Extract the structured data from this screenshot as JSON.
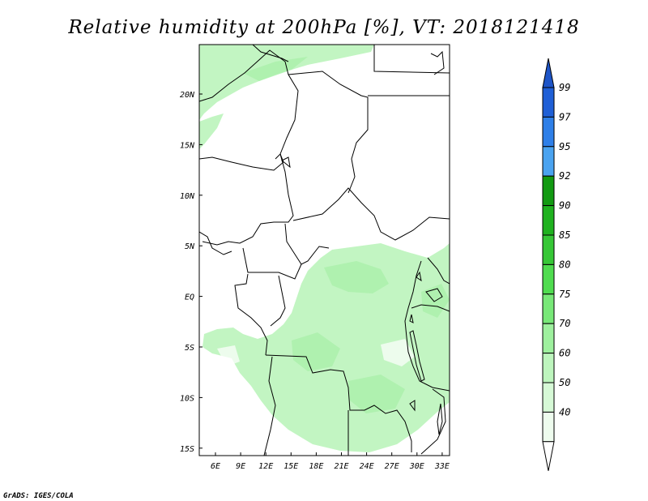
{
  "title": "Relative humidity at 200hPa [%], VT: 2018121418",
  "credit": "GrADS: IGES/COLA",
  "map": {
    "lon_ticks": [
      "6E",
      "9E",
      "12E",
      "15E",
      "18E",
      "21E",
      "24E",
      "27E",
      "30E",
      "33E"
    ],
    "lat_ticks": [
      "20N",
      "15N",
      "10N",
      "5N",
      "EQ",
      "5S",
      "10S",
      "15S"
    ]
  },
  "colorbar": {
    "labels": [
      "99",
      "97",
      "95",
      "92",
      "90",
      "85",
      "80",
      "75",
      "70",
      "60",
      "50",
      "40"
    ],
    "colors": [
      "#1f5fd6",
      "#2e7fe8",
      "#4aa3f0",
      "#129a12",
      "#1fb21f",
      "#36c736",
      "#4fdc4f",
      "#78e878",
      "#9ef09e",
      "#bdf5bd",
      "#d6f9d6",
      "#eefcee"
    ],
    "arrow_top_color": "#1e55c8"
  },
  "palette": {
    "humid_light": "#c2f5c2",
    "humid_mid": "#aaf0aa",
    "border": "#000000"
  }
}
